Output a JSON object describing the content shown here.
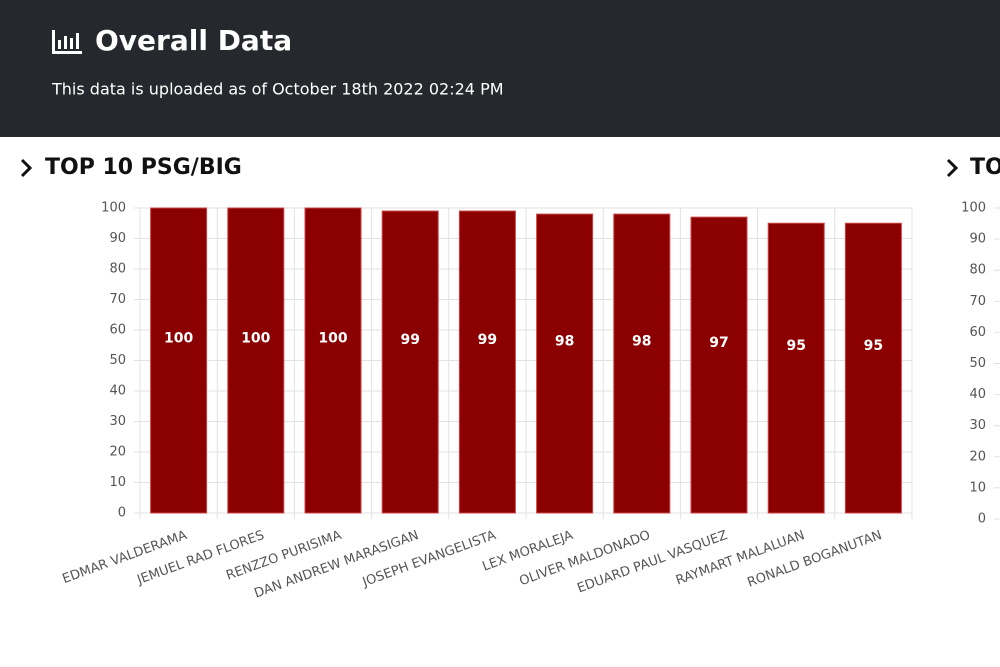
{
  "header": {
    "title": "Overall Data",
    "subtitle": "This data is uploaded as of October 18th 2022 02:24 PM"
  },
  "chart_data": [
    {
      "type": "bar",
      "title": "TOP 10 PSG/BIG",
      "categories": [
        "EDMAR VALDERAMA",
        "JEMUEL RAD FLORES",
        "RENZZO PURISIMA",
        "DAN ANDREW MARASIGAN",
        "JOSEPH EVANGELISTA",
        "LEX MORALEJA",
        "OLIVER MALDONADO",
        "EDUARD PAUL VASQUEZ",
        "RAYMART MALALUAN",
        "RONALD BOGANUTAN"
      ],
      "values": [
        100,
        100,
        100,
        99,
        99,
        98,
        98,
        97,
        95,
        95
      ],
      "color": "#8b0000",
      "ylim": [
        0,
        100
      ],
      "yticks": [
        0,
        10,
        20,
        30,
        40,
        50,
        60,
        70,
        80,
        90,
        100
      ],
      "grid": true
    },
    {
      "type": "bar",
      "title": "TO",
      "ylim": [
        0,
        100
      ],
      "yticks": [
        0,
        10,
        20,
        30,
        40,
        50,
        60,
        70,
        80,
        90,
        100
      ],
      "grid": true
    }
  ]
}
